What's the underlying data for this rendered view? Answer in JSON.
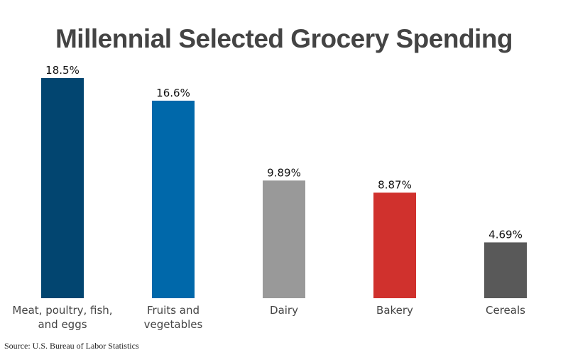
{
  "chart_data": {
    "type": "bar",
    "title": "Millennial Selected Grocery Spending",
    "categories": [
      [
        "Meat, poultry, fish,",
        "and eggs"
      ],
      [
        "Fruits and",
        "vegetables"
      ],
      [
        "Dairy"
      ],
      [
        "Bakery"
      ],
      [
        "Cereals"
      ]
    ],
    "values": [
      18.5,
      16.6,
      9.89,
      8.87,
      4.69
    ],
    "value_labels": [
      "18.5%",
      "16.6%",
      "9.89%",
      "8.87%",
      "4.69%"
    ],
    "colors": [
      "#024570",
      "#0068aa",
      "#999999",
      "#d0312d",
      "#595959"
    ],
    "ylim": [
      0,
      18.5
    ],
    "grid": false,
    "legend": "none",
    "source": "Source: U.S. Bureau of Labor Statistics"
  }
}
